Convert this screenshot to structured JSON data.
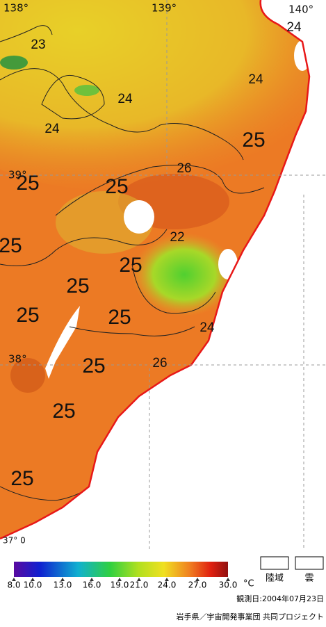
{
  "map": {
    "lon_labels": [
      "138°",
      "139°",
      "140°"
    ],
    "lat_labels": [
      "39°",
      "38°",
      "37° 0"
    ],
    "contour_labels": [
      "23",
      "24",
      "24",
      "24",
      "24",
      "25",
      "26",
      "25",
      "25",
      "22",
      "25",
      "25",
      "25",
      "25",
      "25",
      "24",
      "26",
      "25",
      "25",
      "25"
    ],
    "colorbar": {
      "ticks": [
        "8.0",
        "10.0",
        "13.0",
        "16.0",
        "19.0",
        "21.0",
        "24.0",
        "27.0",
        "30.0"
      ],
      "unit": "°C"
    },
    "legend": [
      "陸域",
      "雲"
    ],
    "footer": {
      "date": "観測日:2004年07月23日",
      "credit": "岩手県／宇宙開発事業団 共同プロジェクト"
    }
  }
}
